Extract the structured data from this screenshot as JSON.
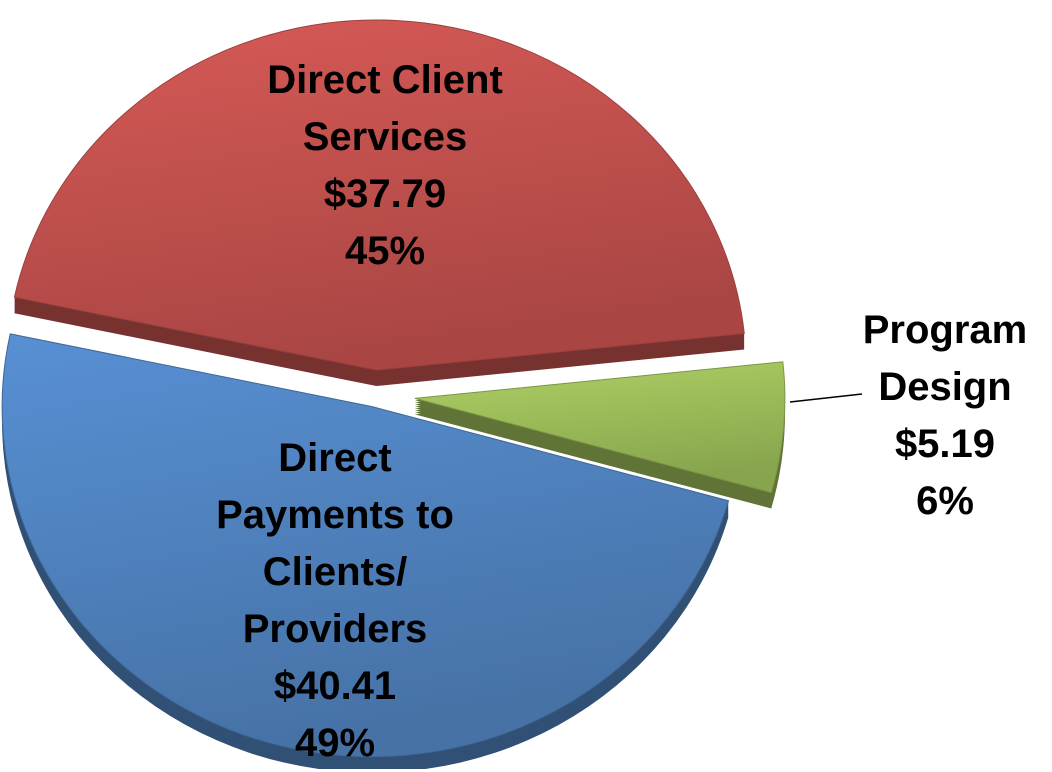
{
  "chart_data": {
    "type": "pie",
    "categories": [
      "Direct Client Services",
      "Program Design",
      "Direct Payments to Clients/ Providers"
    ],
    "values": [
      45,
      6,
      49
    ],
    "value_labels": [
      "45%",
      "6%",
      "49%"
    ],
    "amounts": [
      37.79,
      5.19,
      40.41
    ],
    "amount_labels": [
      "$37.79",
      "$5.19",
      "$40.41"
    ],
    "colors": [
      "#c0504d",
      "#9bbb59",
      "#4f81bd"
    ]
  }
}
